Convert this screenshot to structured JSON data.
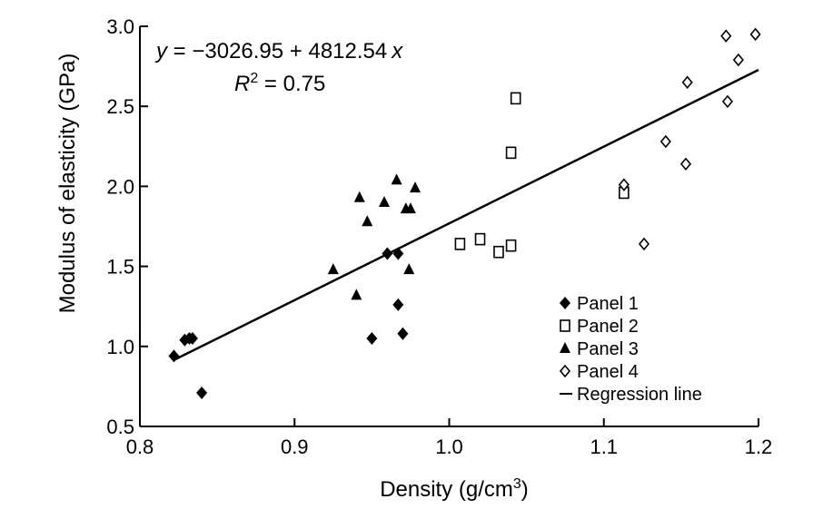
{
  "chart_data": {
    "type": "scatter",
    "xlabel": "Density (g/cm",
    "xlabel_sup": "3",
    "xlabel_end": ")",
    "ylabel": "Modulus of elasticity (GPa)",
    "xlim": [
      0.8,
      1.2
    ],
    "ylim": [
      0.5,
      3.0
    ],
    "xticks": [
      0.8,
      0.9,
      1.0,
      1.1,
      1.2
    ],
    "xtick_labels": [
      "0.8",
      "0.9",
      "1.0",
      "1.1",
      "1.2"
    ],
    "yticks": [
      0.5,
      1.0,
      1.5,
      2.0,
      2.5,
      3.0
    ],
    "ytick_labels": [
      "0.5",
      "1.0",
      "1.5",
      "2.0",
      "2.5",
      "3.0"
    ],
    "grid": false,
    "legend_position": "bottom-right",
    "annotation": {
      "equation_prefix": "y",
      "equation_body": " = −3026.95 + 4812.54",
      "equation_var": "x",
      "r2_var": "R",
      "r2_sup": "2",
      "r2_value": " = 0.75"
    },
    "series": [
      {
        "name": "Panel 1",
        "marker": "filled-diamond",
        "color": "#000000",
        "points": [
          [
            0.822,
            0.94
          ],
          [
            0.829,
            1.04
          ],
          [
            0.832,
            1.05
          ],
          [
            0.834,
            1.05
          ],
          [
            0.84,
            0.71
          ],
          [
            0.95,
            1.05
          ],
          [
            0.96,
            1.58
          ],
          [
            0.967,
            1.58
          ],
          [
            0.967,
            1.26
          ],
          [
            0.97,
            1.08
          ]
        ]
      },
      {
        "name": "Panel 2",
        "marker": "open-square",
        "color": "#000000",
        "points": [
          [
            1.007,
            1.64
          ],
          [
            1.02,
            1.67
          ],
          [
            1.032,
            1.59
          ],
          [
            1.04,
            1.63
          ],
          [
            1.04,
            2.21
          ],
          [
            1.043,
            2.55
          ],
          [
            1.113,
            1.96
          ]
        ]
      },
      {
        "name": "Panel 3",
        "marker": "filled-triangle",
        "color": "#000000",
        "points": [
          [
            0.925,
            1.48
          ],
          [
            0.94,
            1.32
          ],
          [
            0.942,
            1.93
          ],
          [
            0.947,
            1.78
          ],
          [
            0.958,
            1.9
          ],
          [
            0.966,
            2.04
          ],
          [
            0.972,
            1.86
          ],
          [
            0.974,
            1.48
          ],
          [
            0.975,
            1.86
          ],
          [
            0.978,
            1.99
          ]
        ]
      },
      {
        "name": "Panel 4",
        "marker": "open-diamond",
        "color": "#000000",
        "points": [
          [
            1.113,
            2.01
          ],
          [
            1.126,
            1.64
          ],
          [
            1.14,
            2.28
          ],
          [
            1.153,
            2.14
          ],
          [
            1.154,
            2.65
          ],
          [
            1.179,
            2.94
          ],
          [
            1.18,
            2.53
          ],
          [
            1.187,
            2.79
          ],
          [
            1.198,
            2.95
          ]
        ]
      }
    ],
    "regression": {
      "name": "Regression line",
      "x": [
        0.822,
        1.2
      ],
      "y": [
        0.915,
        2.728
      ]
    }
  }
}
